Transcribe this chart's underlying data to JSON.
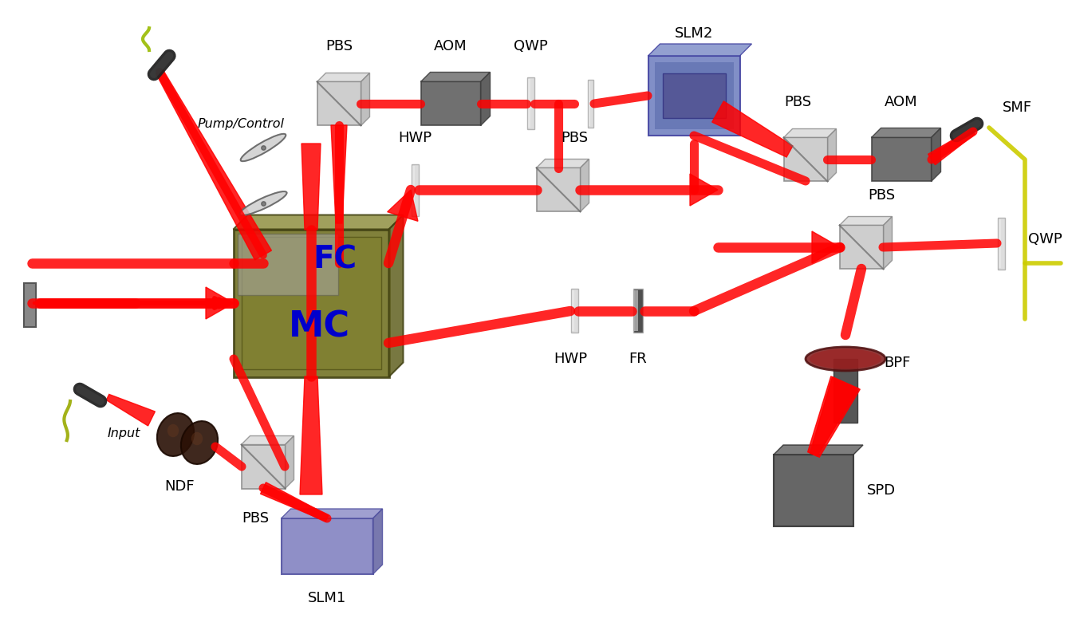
{
  "title": "",
  "bg_color": "#ffffff",
  "beam_color": "#ff0000",
  "beam_alpha": 0.85,
  "fiber_color_yellow": "#cccc00",
  "fiber_color_green": "#99aa00",
  "labels": {
    "PBS_top": "PBS",
    "AOM_top": "AOM",
    "QWP_top": "QWP",
    "SLM2": "SLM2",
    "PBS_tr": "PBS",
    "AOM_tr": "AOM",
    "SMF": "SMF",
    "QWP_tr": "QWP",
    "HWP_mid": "HWP",
    "PBS_mid": "PBS",
    "FC": "FC",
    "MC": "MC",
    "PBS_bottom_mid": "PBS",
    "FR": "FR",
    "HWP_bottom": "HWP",
    "BPF": "BPF",
    "SPD": "SPD",
    "NDF": "NDF",
    "PBS_bottom_left": "PBS",
    "SLM1": "SLM1",
    "Input": "Input",
    "Pump_Control": "Pump/Control"
  },
  "component_colors": {
    "PBS": [
      "#c0c0c0",
      "#a0a0a0",
      "#888888"
    ],
    "AOM": [
      "#606060",
      "#707070",
      "#505050"
    ],
    "QWP": [
      "#d0d0d0",
      "#e8e8e8"
    ],
    "HWP": [
      "#d0d0d0",
      "#e8e8e8"
    ],
    "SLM": [
      "#8080b0",
      "#6060a0"
    ],
    "SLM2": [
      "#7080b0",
      "#5060a0"
    ],
    "MC_color": [
      "#6b6b1a",
      "#555510"
    ],
    "FC_color": [
      "#888870",
      "#666650"
    ],
    "SMF_body": "#222222",
    "fiber_yellow": "#cccc00",
    "NDF_color": "#3a2010",
    "BPF_color": "#602020",
    "SPD_color": "#555555",
    "mirror_color": "#d8d8d8"
  }
}
